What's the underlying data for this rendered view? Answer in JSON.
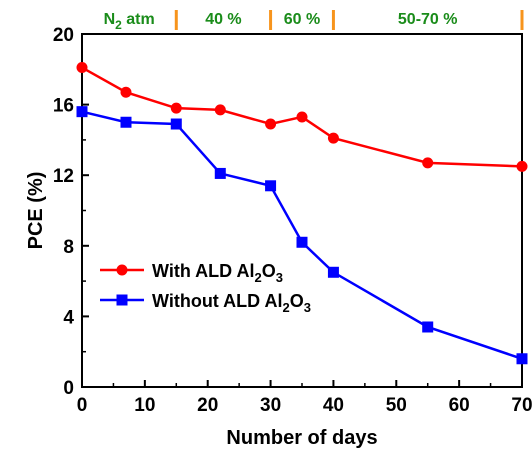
{
  "chart_data": {
    "type": "line",
    "title": "",
    "xlabel": "Number of days",
    "ylabel": "PCE (%)",
    "xlim": [
      0,
      70
    ],
    "ylim": [
      0,
      20
    ],
    "xticks": [
      0,
      10,
      20,
      30,
      40,
      50,
      60,
      70
    ],
    "yticks": [
      0,
      4,
      8,
      12,
      16,
      20
    ],
    "grid": false,
    "legend_position": "center-left",
    "series": [
      {
        "name": "With ALD Al2O3",
        "color": "#ff0000",
        "marker": "circle",
        "x": [
          0,
          7,
          15,
          22,
          30,
          35,
          40,
          55,
          70
        ],
        "y": [
          18.1,
          16.7,
          15.8,
          15.7,
          14.9,
          15.3,
          14.1,
          12.7,
          12.5
        ]
      },
      {
        "name": "Without ALD Al2O3",
        "color": "#0000ff",
        "marker": "square",
        "x": [
          0,
          7,
          15,
          22,
          30,
          35,
          40,
          55,
          70
        ],
        "y": [
          15.6,
          15.0,
          14.9,
          12.1,
          11.4,
          8.2,
          6.5,
          3.4,
          1.6
        ]
      }
    ],
    "annotations": {
      "regions": [
        {
          "label_parts": [
            "N",
            "2",
            " atm"
          ],
          "from": 0,
          "to": 15
        },
        {
          "label_parts": [
            "40 %"
          ],
          "from": 15,
          "to": 30
        },
        {
          "label_parts": [
            "60 %"
          ],
          "from": 30,
          "to": 40
        },
        {
          "label_parts": [
            "50-70 %"
          ],
          "from": 40,
          "to": 70
        }
      ],
      "region_text_color": "#1a8c1a",
      "divider_color": "#f7941d",
      "divider_positions": [
        15,
        30,
        40,
        70
      ]
    },
    "legend": [
      {
        "parts": [
          "With ALD Al",
          "2",
          "O",
          "3"
        ],
        "color": "#ff0000",
        "marker": "circle"
      },
      {
        "parts": [
          "Without ALD Al",
          "2",
          "O",
          "3"
        ],
        "color": "#0000ff",
        "marker": "square"
      }
    ]
  }
}
